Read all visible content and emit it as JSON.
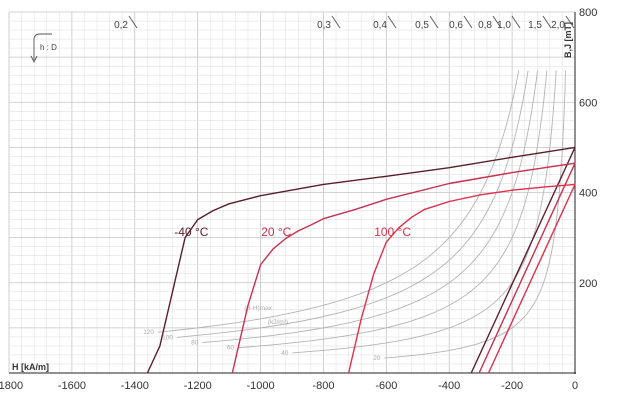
{
  "chart_data": {
    "type": "line",
    "xlabel": "H [kA/m]",
    "ylabel": "B,J [mT]",
    "xlim": [
      -1800,
      0
    ],
    "ylim": [
      0,
      800
    ],
    "x_ticks": [
      -1800,
      -1600,
      -1400,
      -1200,
      -1000,
      -800,
      -600,
      -400,
      -200,
      0
    ],
    "y_ticks": [
      200,
      400,
      600,
      800
    ],
    "grid": true,
    "colors": {
      "-40 °C": "#5a1f2e",
      "20 °C": "#c8304f",
      "100 °C": "#e0304a",
      "isoenergy": "#b4b4b4",
      "grid": "#d4d4d4"
    },
    "series": [
      {
        "name": "-40 °C",
        "color": "#5a1f2e",
        "J_curve": {
          "x": [
            -1360,
            -1320,
            -1280,
            -1240,
            -1200,
            -1150,
            -1100,
            -1000,
            -800,
            -600,
            -400,
            -200,
            0
          ],
          "y": [
            0,
            60,
            180,
            300,
            340,
            360,
            375,
            393,
            418,
            436,
            455,
            478,
            500
          ]
        },
        "B_line": {
          "x": [
            -330,
            0
          ],
          "y": [
            0,
            500
          ]
        }
      },
      {
        "name": "20 °C",
        "color": "#c8304f",
        "J_curve": {
          "x": [
            -1090,
            -1040,
            -1000,
            -960,
            -920,
            -880,
            -840,
            -800,
            -700,
            -600,
            -400,
            -200,
            0
          ],
          "y": [
            0,
            150,
            240,
            275,
            298,
            315,
            328,
            342,
            362,
            385,
            420,
            444,
            465
          ]
        },
        "B_line": {
          "x": [
            -305,
            0
          ],
          "y": [
            0,
            465
          ]
        }
      },
      {
        "name": "100 °C",
        "color": "#e0304a",
        "J_curve": {
          "x": [
            -720,
            -680,
            -640,
            -600,
            -560,
            -520,
            -480,
            -400,
            -300,
            -200,
            -100,
            0
          ],
          "y": [
            0,
            120,
            220,
            290,
            322,
            345,
            362,
            380,
            395,
            405,
            412,
            418
          ]
        },
        "B_line": {
          "x": [
            -275,
            0
          ],
          "y": [
            0,
            418
          ]
        }
      }
    ],
    "pc_labels": [
      "0,2",
      "0,3",
      "0,4",
      "0,5",
      "0,6",
      "0,8",
      "1,0",
      "1,5",
      "2,0"
    ],
    "isoenergy_title": "(B·H)max",
    "isoenergy_unit": "(kJ/m³)",
    "isoenergy_values": [
      120,
      100,
      80,
      60,
      40,
      20
    ],
    "isoenergy_labels": [
      "120",
      "100",
      "80",
      "60",
      "40",
      "20"
    ],
    "hd_label": "h : D"
  }
}
